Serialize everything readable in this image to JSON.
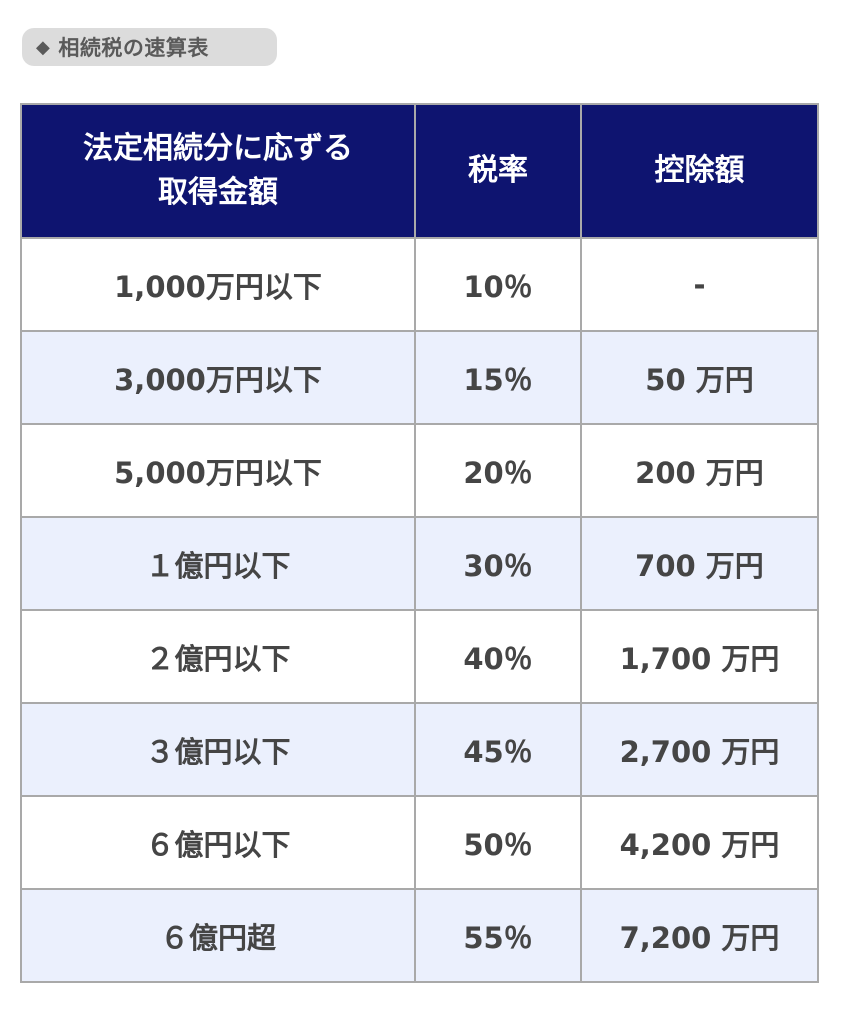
{
  "title": {
    "icon": "diamond-icon",
    "icon_glyph": "◆",
    "text": "相続税の速算表"
  },
  "colors": {
    "header_bg": "#0e1470",
    "header_text": "#ffffff",
    "alt_row_bg": "#ebf0fd",
    "border": "#a9a9a9",
    "body_text": "#454545",
    "title_pill_bg": "#dcdcdc"
  },
  "table": {
    "headers": [
      {
        "line1": "法定相続分に応ずる",
        "line2": "取得金額"
      },
      {
        "line1": "税率",
        "line2": ""
      },
      {
        "line1": "控除額",
        "line2": ""
      }
    ],
    "rows": [
      {
        "amount": "1,000万円以下",
        "rate": "10％",
        "deduction": "-"
      },
      {
        "amount": "3,000万円以下",
        "rate": "15％",
        "deduction": "50 万円"
      },
      {
        "amount": "5,000万円以下",
        "rate": "20％",
        "deduction": "200 万円"
      },
      {
        "amount": "１億円以下",
        "rate": "30％",
        "deduction": "700 万円"
      },
      {
        "amount": "２億円以下",
        "rate": "40％",
        "deduction": "1,700 万円"
      },
      {
        "amount": "３億円以下",
        "rate": "45％",
        "deduction": "2,700 万円"
      },
      {
        "amount": "６億円以下",
        "rate": "50％",
        "deduction": "4,200 万円"
      },
      {
        "amount": "６億円超",
        "rate": "55％",
        "deduction": "7,200 万円"
      }
    ]
  }
}
